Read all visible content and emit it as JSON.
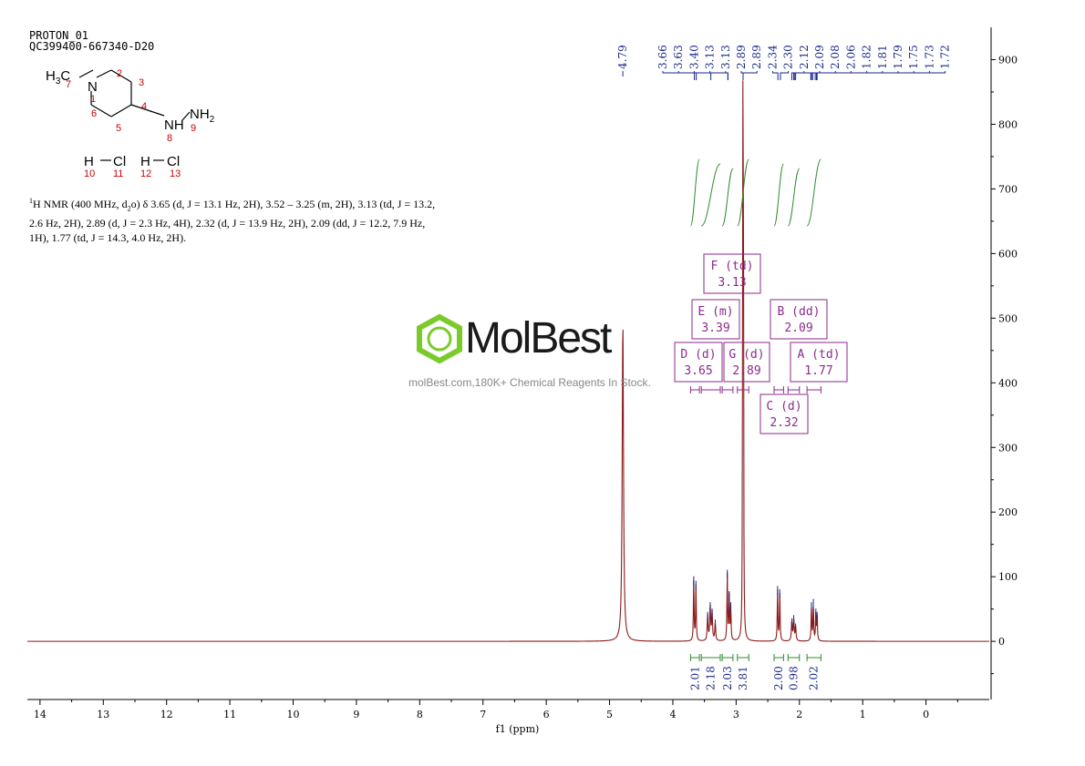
{
  "header": {
    "line1": "PROTON_01",
    "line2": "QC399400-667340-D20"
  },
  "structure": {
    "methyl": "H",
    "methyl_sub": "3",
    "methyl_c": "C",
    "n1": "N",
    "nh": "NH",
    "nh2": "NH",
    "nh2_sub": "2",
    "hcl_h": "H",
    "hcl_cl": "Cl",
    "atom_numbers": [
      "7",
      "1",
      "2",
      "3",
      "4",
      "5",
      "6",
      "8",
      "9",
      "10",
      "11",
      "12",
      "13"
    ]
  },
  "nmr_text": {
    "sup": "1",
    "line1": "H NMR (400 MHz, d",
    "d_sub": "2",
    "line1b": "o) δ 3.65 (d, J = 13.1 Hz, 2H), 3.52 – 3.25 (m, 2H), 3.13 (td, J = 13.2,",
    "line2": "2.6 Hz, 2H), 2.89 (d, J = 2.3 Hz, 4H), 2.32 (d, J = 13.9 Hz, 2H), 2.09 (dd, J = 12.2, 7.9 Hz,",
    "line3": "1H), 1.77 (td, J = 14.3, 4.0 Hz, 2H)."
  },
  "watermark": {
    "brand": "MolBest",
    "tagline": "molBest.com,180K+ Chemical Reagents In Stock."
  },
  "colors": {
    "spectrum": "#8b1a1a",
    "peak_label": "#1a2a8c",
    "integral": "#2e8b2e",
    "multiplet_box": "#8b2a8b",
    "logo": "#7acb2a"
  },
  "chart_data": {
    "type": "line",
    "xlabel": "f1 (ppm)",
    "xlim": [
      14.2,
      -1.0
    ],
    "ylim": [
      -90,
      950
    ],
    "x_ticks": [
      "14",
      "13",
      "12",
      "11",
      "10",
      "9",
      "8",
      "7",
      "6",
      "5",
      "4",
      "3",
      "2",
      "1",
      "0"
    ],
    "y_ticks": [
      "900",
      "800",
      "700",
      "600",
      "500",
      "400",
      "300",
      "200",
      "100",
      "0"
    ],
    "peaks": [
      {
        "ppm": 4.79,
        "height": 500,
        "width": 0.012
      },
      {
        "ppm": 3.67,
        "height": 95,
        "width": 0.006
      },
      {
        "ppm": 3.635,
        "height": 88,
        "width": 0.006
      },
      {
        "ppm": 3.45,
        "height": 40,
        "width": 0.008
      },
      {
        "ppm": 3.41,
        "height": 55,
        "width": 0.008
      },
      {
        "ppm": 3.38,
        "height": 45,
        "width": 0.008
      },
      {
        "ppm": 3.33,
        "height": 28,
        "width": 0.008
      },
      {
        "ppm": 3.14,
        "height": 105,
        "width": 0.006
      },
      {
        "ppm": 3.11,
        "height": 70,
        "width": 0.006
      },
      {
        "ppm": 3.085,
        "height": 55,
        "width": 0.006
      },
      {
        "ppm": 2.895,
        "height": 820,
        "width": 0.004
      },
      {
        "ppm": 2.885,
        "height": 800,
        "width": 0.004
      },
      {
        "ppm": 2.345,
        "height": 80,
        "width": 0.006
      },
      {
        "ppm": 2.31,
        "height": 75,
        "width": 0.006
      },
      {
        "ppm": 2.12,
        "height": 30,
        "width": 0.008
      },
      {
        "ppm": 2.09,
        "height": 35,
        "width": 0.008
      },
      {
        "ppm": 2.06,
        "height": 22,
        "width": 0.008
      },
      {
        "ppm": 1.81,
        "height": 55,
        "width": 0.006
      },
      {
        "ppm": 1.78,
        "height": 60,
        "width": 0.006
      },
      {
        "ppm": 1.74,
        "height": 45,
        "width": 0.006
      },
      {
        "ppm": 1.72,
        "height": 40,
        "width": 0.006
      }
    ],
    "peak_labels": [
      "4.79",
      "3.66",
      "3.63",
      "3.40",
      "3.13",
      "3.13",
      "2.89",
      "2.89",
      "2.34",
      "2.30",
      "2.12",
      "2.09",
      "2.08",
      "2.06",
      "1.82",
      "1.81",
      "1.79",
      "1.75",
      "1.73",
      "1.72"
    ],
    "multiplets": [
      {
        "label": "F (td)",
        "value": "3.13"
      },
      {
        "label": "E (m)",
        "value": "3.39"
      },
      {
        "label": "B (dd)",
        "value": "2.09"
      },
      {
        "label": "D (d)",
        "value": "3.65"
      },
      {
        "label": "G (d)",
        "value": "2.89"
      },
      {
        "label": "A (td)",
        "value": "1.77"
      },
      {
        "label": "C (d)",
        "value": "2.32"
      }
    ],
    "integrals": [
      {
        "from": 3.72,
        "to": 3.58,
        "value": "2.01"
      },
      {
        "from": 3.55,
        "to": 3.25,
        "value": "2.18"
      },
      {
        "from": 3.22,
        "to": 3.05,
        "value": "2.03"
      },
      {
        "from": 2.98,
        "to": 2.8,
        "value": "3.81"
      },
      {
        "from": 2.4,
        "to": 2.25,
        "value": "2.00"
      },
      {
        "from": 2.18,
        "to": 2.0,
        "value": "0.98"
      },
      {
        "from": 1.88,
        "to": 1.66,
        "value": "2.02"
      }
    ]
  }
}
